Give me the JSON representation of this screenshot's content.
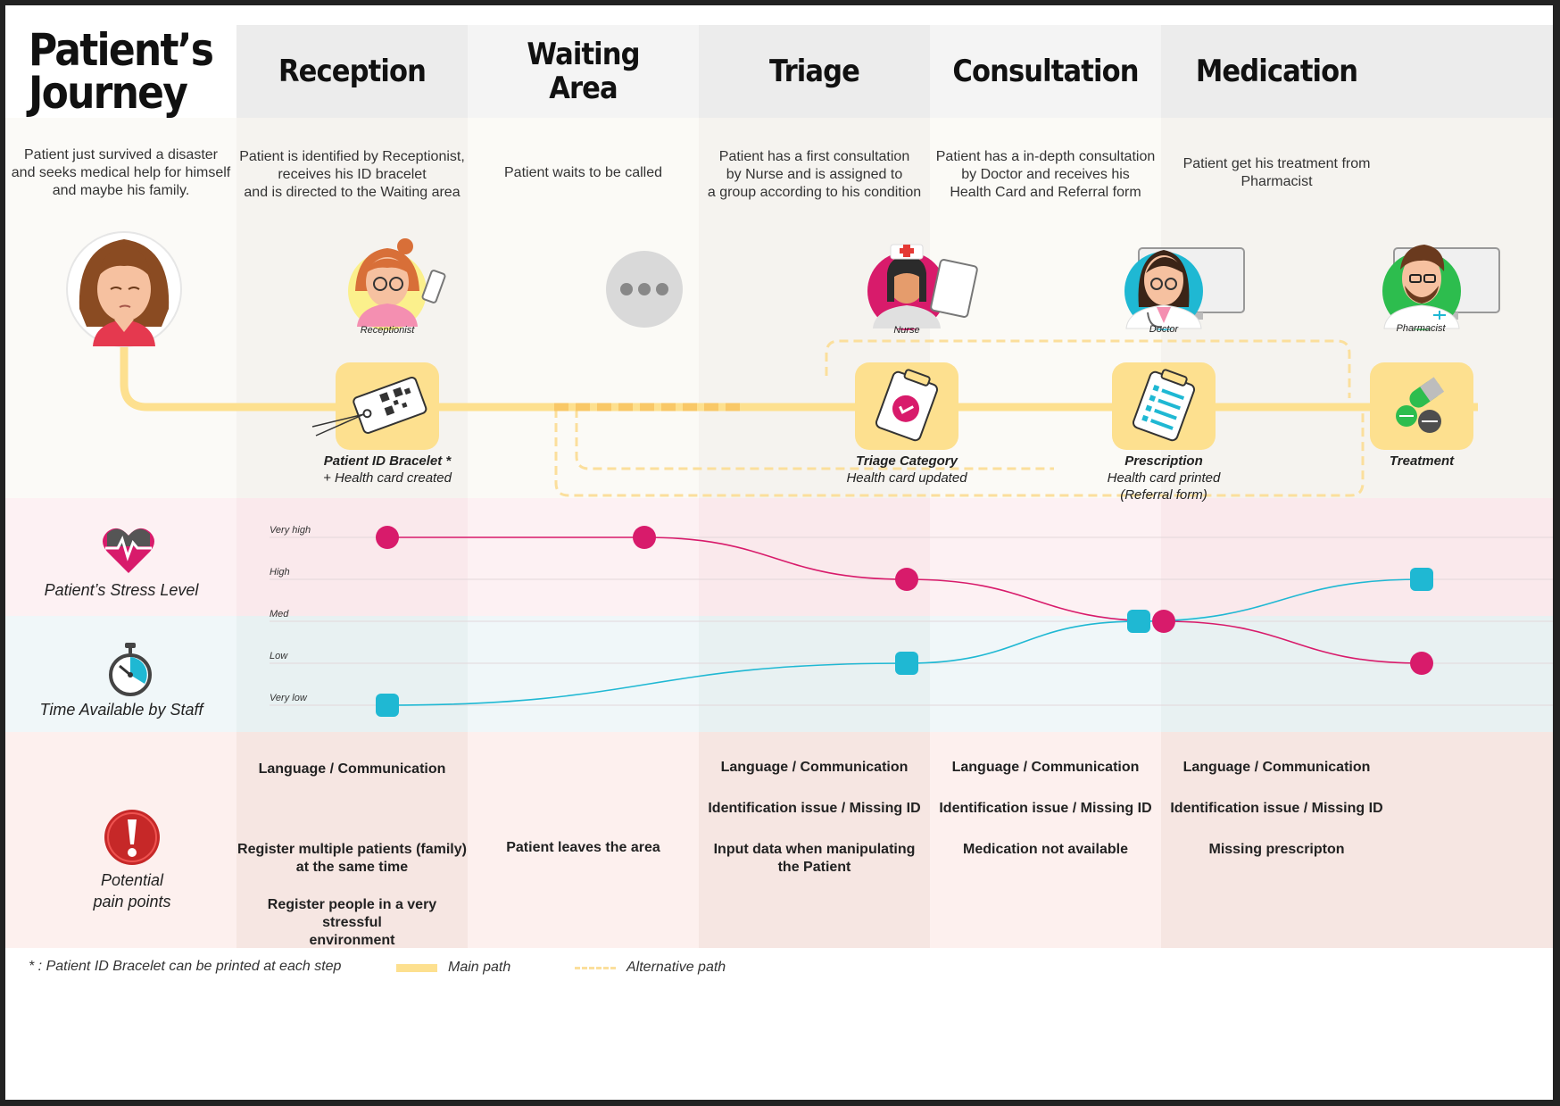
{
  "header": {
    "title_line1": "Patient’s",
    "title_line2": "Journey"
  },
  "stages": [
    {
      "title_line1": "Reception",
      "title_line2": ""
    },
    {
      "title_line1": "Waiting",
      "title_line2": "Area"
    },
    {
      "title_line1": "Triage",
      "title_line2": ""
    },
    {
      "title_line1": "Consultation",
      "title_line2": ""
    },
    {
      "title_line1": "Medication",
      "title_line2": ""
    }
  ],
  "descriptions": {
    "patient": [
      "Patient just survived a disaster",
      "and seeks medical help for himself",
      "and maybe his family."
    ],
    "reception": [
      "Patient is identified by Receptionist,",
      "receives his ID bracelet",
      "and is directed to the Waiting area"
    ],
    "waiting": [
      "Patient waits to be called"
    ],
    "triage": [
      "Patient has a first consultation",
      "by Nurse and is assigned to",
      "a group according to his condition"
    ],
    "consultation": [
      "Patient has a in-depth consultation",
      "by Doctor and receives his",
      "Health Card and Referral form"
    ],
    "medication": [
      "Patient get his treatment from",
      "Pharmacist"
    ]
  },
  "roles": {
    "receptionist": "Receptionist",
    "nurse": "Nurse",
    "doctor": "Doctor",
    "pharmacist": "Pharmacist"
  },
  "artifacts": {
    "bracelet": {
      "line1": "Patient ID Bracelet *",
      "line2": "+ Health card created",
      "line3": ""
    },
    "triage": {
      "line1": "Triage Category",
      "line2": "Health card updated",
      "line3": ""
    },
    "prescription": {
      "line1": "Prescription",
      "line2": "Health card printed",
      "line3": "(Referral form)"
    },
    "treatment": {
      "line1": "Treatment",
      "line2": "",
      "line3": ""
    }
  },
  "chart": {
    "stress_label": "Patient’s Stress Level",
    "time_label": "Time Available by Staff",
    "levels": [
      "Very high",
      "High",
      "Med",
      "Low",
      "Very low"
    ],
    "stress_color": "#d81b6b",
    "time_color": "#1fb8d3"
  },
  "chart_data": {
    "type": "line",
    "categories": [
      "Reception",
      "Waiting Area",
      "Triage",
      "Consultation",
      "Medication"
    ],
    "y_levels": [
      "Very low",
      "Low",
      "Med",
      "High",
      "Very high"
    ],
    "series": [
      {
        "name": "Patient’s Stress Level",
        "points": [
          {
            "x": "Reception",
            "y": 5
          },
          {
            "x": "Waiting Area",
            "y": 5
          },
          {
            "x": "Triage",
            "y": 4
          },
          {
            "x": "Consultation",
            "y": 3
          },
          {
            "x": "Medication",
            "y": 2
          }
        ]
      },
      {
        "name": "Time Available by Staff",
        "points": [
          {
            "x": "Reception",
            "y": 1
          },
          {
            "x": "Triage",
            "y": 2
          },
          {
            "x": "Consultation",
            "y": 3
          },
          {
            "x": "Medication",
            "y": 4
          }
        ]
      }
    ]
  },
  "pain_points": {
    "label_line1": "Potential",
    "label_line2": "pain points",
    "reception": [
      "Language / Communication",
      "Register multiple patients (family)",
      "at the same time",
      "Register people in a very stressful",
      "environment"
    ],
    "waiting": [
      "Patient leaves the area"
    ],
    "triage": [
      "Language / Communication",
      "Identification issue / Missing ID",
      "Input data when manipulating",
      "the Patient"
    ],
    "consultation": [
      "Language / Communication",
      "Identification issue / Missing ID",
      "Medication not available"
    ],
    "medication": [
      "Language / Communication",
      "Identification issue / Missing ID",
      "Missing prescripton"
    ]
  },
  "footer": {
    "note": "* : Patient ID Bracelet can be printed at each step",
    "main_path": "Main path",
    "alt_path": "Alternative path"
  },
  "colors": {
    "path": "#fde08f",
    "alt_path": "#fbdf9c",
    "stress": "#d81b6b",
    "time": "#1fb8d3",
    "nurse_bg": "#d81b6b",
    "doctor_bg": "#1fb8d3",
    "pharmacist_bg": "#2dbd4e",
    "receptionist_bg": "#fbf08c"
  }
}
